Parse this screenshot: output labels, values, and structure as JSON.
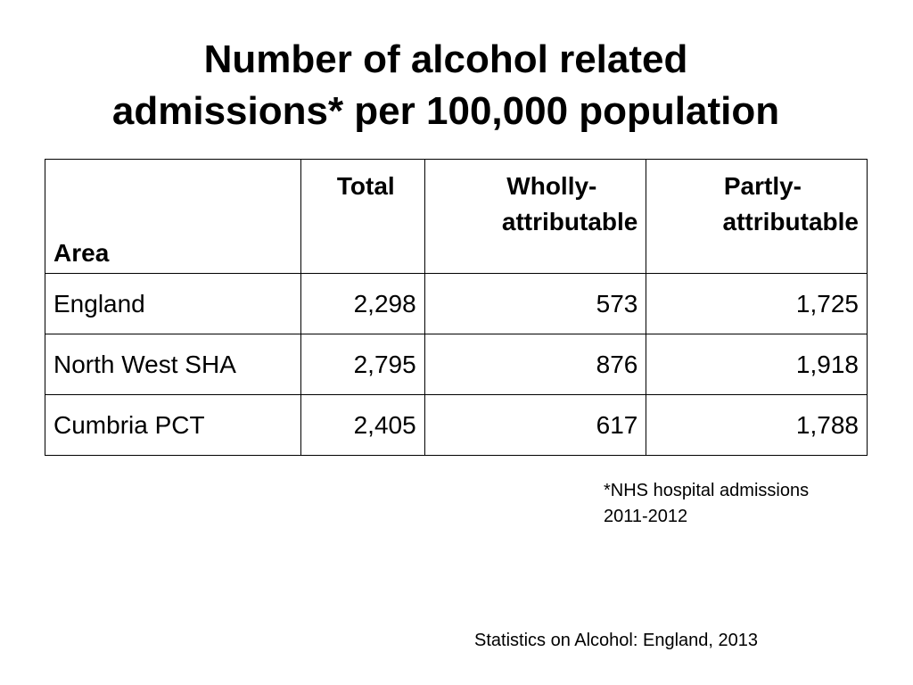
{
  "title": {
    "line1": "Number of alcohol related",
    "line2": "admissions* per 100,000 population"
  },
  "table": {
    "headers": {
      "area": "Area",
      "total": "Total",
      "wholly_line1": "Wholly-",
      "wholly_line2": "attributable",
      "partly_line1": "Partly-",
      "partly_line2": "attributable"
    },
    "rows": [
      {
        "area": "England",
        "total": "2,298",
        "wholly": "573",
        "partly": "1,725"
      },
      {
        "area": "North West SHA",
        "total": "2,795",
        "wholly": "876",
        "partly": "1,918"
      },
      {
        "area": "Cumbria PCT",
        "total": "2,405",
        "wholly": "617",
        "partly": "1,788"
      }
    ]
  },
  "footnote": {
    "line1": "*NHS hospital admissions",
    "line2": "2011-2012"
  },
  "source": "Statistics on Alcohol: England, 2013"
}
